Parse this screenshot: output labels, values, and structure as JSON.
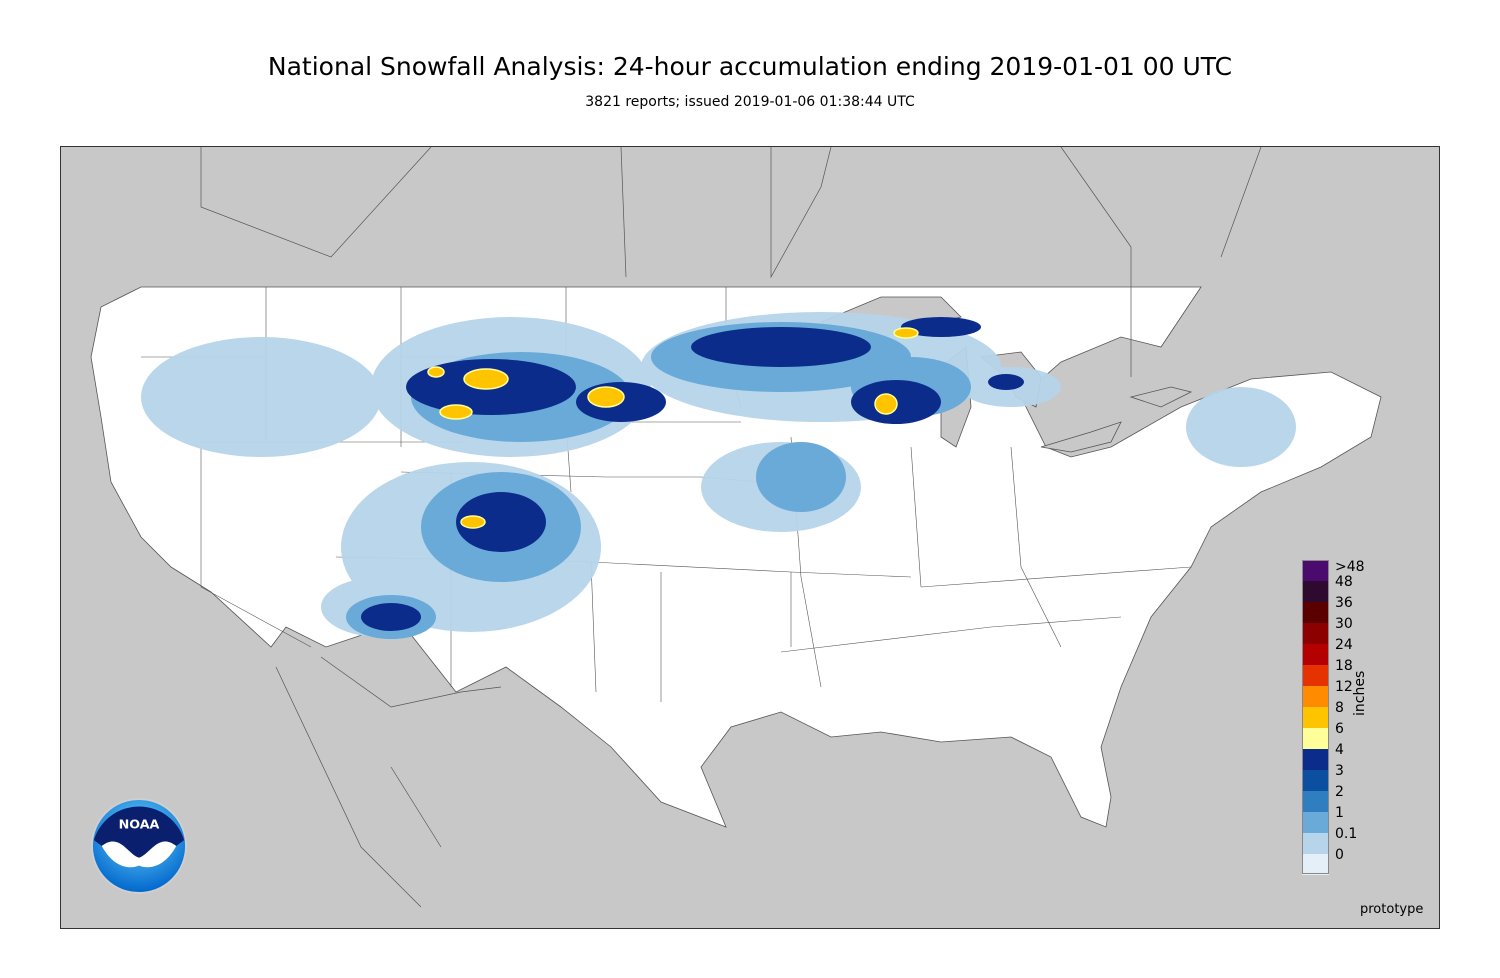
{
  "title": "National Snowfall Analysis: 24-hour accumulation ending 2019-01-01 00 UTC",
  "subtitle": "3821 reports; issued 2019-01-06 01:38:44 UTC",
  "legend": {
    "units": "inches",
    "entries": [
      {
        "label": ">48",
        "color": "#4b0a6e"
      },
      {
        "label": "48",
        "color": "#2e0a2e"
      },
      {
        "label": "36",
        "color": "#5a0000"
      },
      {
        "label": "30",
        "color": "#8c0000"
      },
      {
        "label": "24",
        "color": "#b50000"
      },
      {
        "label": "18",
        "color": "#e63200"
      },
      {
        "label": "12",
        "color": "#ff8c00"
      },
      {
        "label": "8",
        "color": "#ffc400"
      },
      {
        "label": "6",
        "color": "#ffff99"
      },
      {
        "label": "4",
        "color": "#0c2c8c"
      },
      {
        "label": "3",
        "color": "#0c4ea0"
      },
      {
        "label": "2",
        "color": "#2e7ec0"
      },
      {
        "label": "1",
        "color": "#6aaad8"
      },
      {
        "label": "0.1",
        "color": "#b6d4ea"
      },
      {
        "label": "0",
        "color": "#e4eff8"
      }
    ]
  },
  "logo": {
    "text": "NOAA",
    "icon": "noaa-logo-icon"
  },
  "watermark": "prototype",
  "colors": {
    "land_outside": "#c8c8c8",
    "conus": "#ffffff",
    "water": "#c8c8c8"
  }
}
